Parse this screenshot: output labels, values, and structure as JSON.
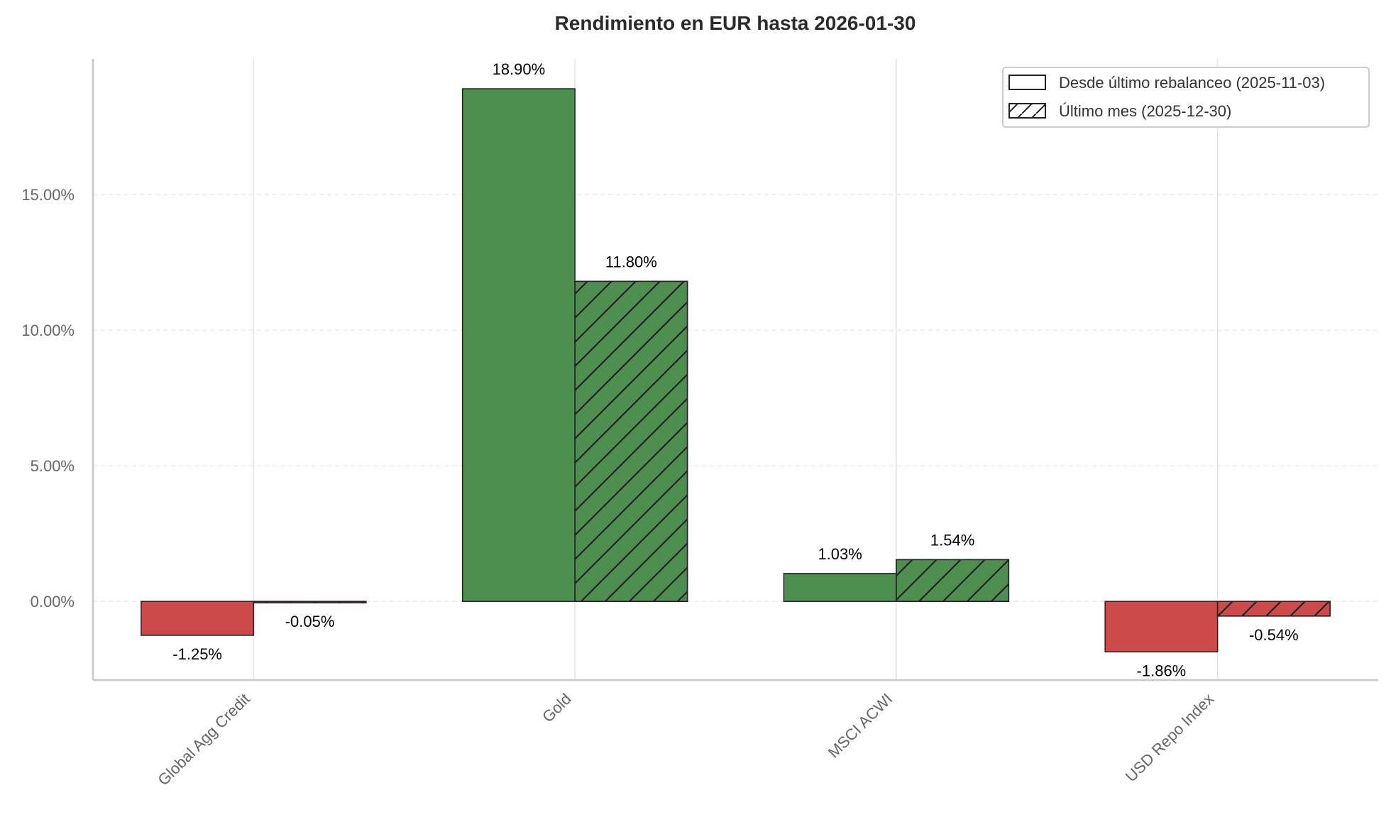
{
  "chart_data": {
    "type": "bar",
    "title": "Rendimiento en EUR hasta 2026-01-30",
    "xlabel": "",
    "ylabel": "",
    "categories": [
      "Global Agg Credit",
      "Gold",
      "MSCI ACWI",
      "USD Repo Index"
    ],
    "series": [
      {
        "name": "Desde último rebalanceo (2025-11-03)",
        "values": [
          -1.25,
          18.9,
          1.03,
          -1.86
        ],
        "value_labels": [
          "-1.25%",
          "18.90%",
          "1.03%",
          "-1.86%"
        ],
        "hatch": "none"
      },
      {
        "name": "Último mes (2025-12-30)",
        "values": [
          -0.05,
          11.8,
          1.54,
          -0.54
        ],
        "value_labels": [
          "-0.05%",
          "11.80%",
          "1.54%",
          "-0.54%"
        ],
        "hatch": "diagonal"
      }
    ],
    "ylim": [
      -2.9,
      20.0
    ],
    "yticks": [
      0,
      5,
      10,
      15
    ],
    "ytick_labels": [
      "0.00%",
      "5.00%",
      "10.00%",
      "15.00%"
    ],
    "grid": true,
    "legend_position": "top-right",
    "colors": {
      "positive": "#4d8f4f",
      "negative": "#cd4a4a",
      "edge": "#222222"
    }
  }
}
